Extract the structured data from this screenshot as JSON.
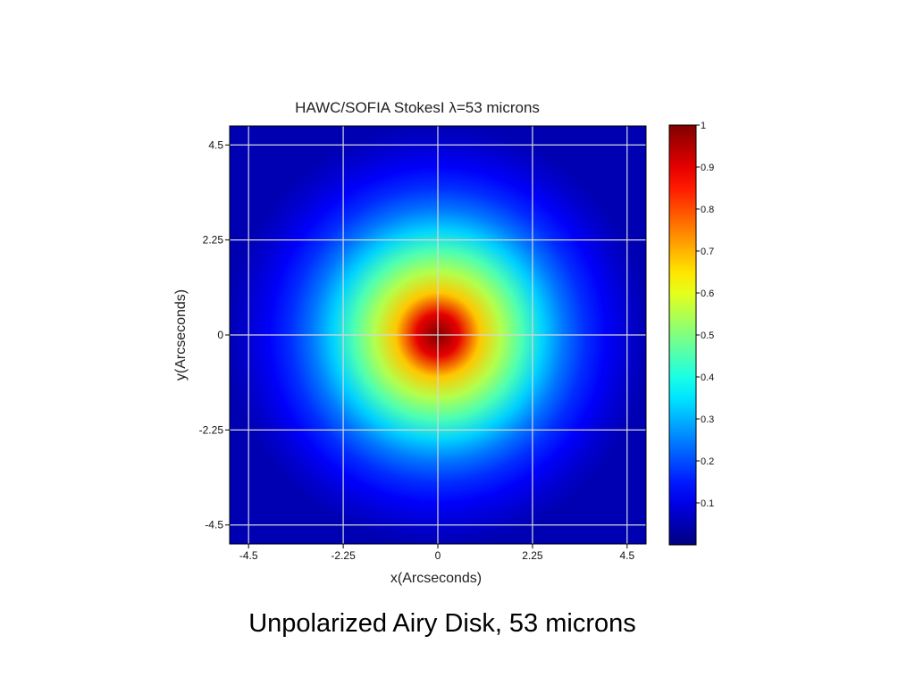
{
  "slide": {
    "caption": "Unpolarized Airy Disk, 53 microns"
  },
  "chart_data": {
    "type": "heatmap",
    "title": "HAWC/SOFIA StokesI λ=53 microns",
    "xlabel": "x(Arcseconds)",
    "ylabel": "y(Arcseconds)",
    "xlim": [
      -4.95,
      4.95
    ],
    "ylim": [
      -4.95,
      4.95
    ],
    "x_ticks": [
      -4.5,
      -2.25,
      0,
      2.25,
      4.5
    ],
    "x_tick_labels": [
      "-4.5",
      "-2.25",
      "0",
      "2.25",
      "4.5"
    ],
    "y_ticks": [
      4.5,
      2.25,
      0,
      -2.25,
      -4.5
    ],
    "y_tick_labels": [
      "4.5",
      "2.25",
      "0",
      "-2.25",
      "-4.5"
    ],
    "grid": true,
    "colormap": "jet",
    "colorbar": {
      "range": [
        0,
        1
      ],
      "ticks": [
        0.1,
        0.2,
        0.3,
        0.4,
        0.5,
        0.6,
        0.7,
        0.8,
        0.9,
        1
      ],
      "tick_labels": [
        "0.1",
        "0.2",
        "0.3",
        "0.4",
        "0.5",
        "0.6",
        "0.7",
        "0.8",
        "0.9",
        "1"
      ]
    },
    "profile": {
      "description": "radially symmetric normalized intensity I(r) centered at (0,0)",
      "r": [
        0,
        0.5,
        1.0,
        1.5,
        2.0,
        2.5,
        3.0,
        3.5,
        4.0,
        4.5,
        5.0
      ],
      "intensity": [
        1.0,
        0.9,
        0.68,
        0.55,
        0.45,
        0.33,
        0.24,
        0.17,
        0.12,
        0.08,
        0.05
      ]
    },
    "colors": {
      "grid": "#d8d8d8",
      "frame": "#000000"
    }
  }
}
